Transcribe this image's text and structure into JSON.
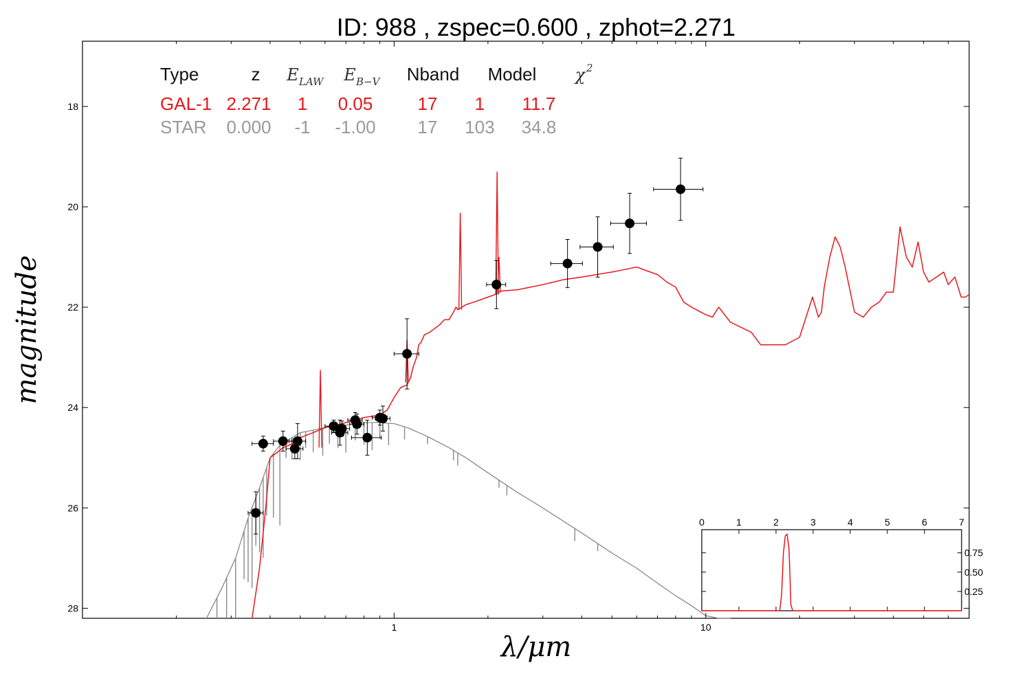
{
  "chart_data": {
    "type": "line",
    "title": "ID:  988   , zspec=0.600 , zphot=2.271",
    "xlabel": "λ/μm",
    "ylabel": "magnitude",
    "xscale": "log",
    "xlim": [
      0.1,
      70
    ],
    "ylim": [
      28.2,
      16.7
    ],
    "yaxis_inverted": true,
    "x_ticks": [
      1,
      10
    ],
    "x_tick_labels": [
      "1",
      "10"
    ],
    "y_ticks": [
      18,
      20,
      22,
      24,
      26,
      28
    ],
    "y_tick_labels": [
      "18",
      "20",
      "22",
      "24",
      "26",
      "28"
    ],
    "grid": false,
    "colors": {
      "galaxy": "#e8161b",
      "star": "#888888",
      "points": "#000000"
    },
    "fit_table": {
      "headers": [
        "Type",
        "z",
        "E",
        "E",
        "Nband",
        "Model",
        "χ"
      ],
      "header_subscripts": [
        "",
        "",
        "LAW",
        "B−V",
        "",
        "",
        ""
      ],
      "header_superscripts": [
        "",
        "",
        "",
        "",
        "",
        "",
        "2"
      ],
      "rows": [
        {
          "name": "GAL-1",
          "values": [
            "GAL-1",
            "2.271",
            "1",
            "0.05",
            "17",
            "1",
            "11.7"
          ],
          "color": "#e8161b"
        },
        {
          "name": "STAR",
          "values": [
            "STAR",
            "0.000",
            "-1",
            "-1.00",
            "17",
            "103",
            "34.8"
          ],
          "color": "#999999"
        }
      ]
    },
    "series": [
      {
        "name": "GAL-1",
        "kind": "line",
        "color": "#e8161b",
        "x": [
          0.35,
          0.37,
          0.38,
          0.39,
          0.4,
          0.42,
          0.44,
          0.46,
          0.48,
          0.5,
          0.55,
          0.6,
          0.65,
          0.7,
          0.75,
          0.8,
          0.9,
          0.95,
          1.0,
          1.05,
          1.1,
          1.13,
          1.15,
          1.18,
          1.2,
          1.22,
          1.25,
          1.3,
          1.4,
          1.45,
          1.5,
          1.55,
          1.58,
          1.6,
          1.65,
          1.7,
          1.8,
          2.0,
          2.1,
          2.15,
          2.17,
          2.2,
          2.5,
          3.0,
          3.5,
          4.0,
          5.0,
          5.5,
          6.0,
          6.5,
          7.0,
          7.5,
          8.0,
          8.5,
          9.0,
          10.0,
          10.5,
          11.0,
          12.0,
          14.0,
          15.0,
          18.0,
          20.0,
          22.0,
          23.0,
          23.5,
          24.0,
          25.0,
          26.0,
          27.0,
          28.0,
          30.0,
          32.0,
          34.0,
          36.0,
          38.0,
          40.0,
          42.0,
          44.0,
          46.0,
          48.0,
          50.0,
          52.0,
          55.0,
          58.0,
          60.0,
          63.0,
          66.0,
          68.0,
          70.0
        ],
        "y": [
          28.2,
          27.2,
          26.5,
          25.8,
          25.0,
          24.9,
          24.8,
          24.75,
          24.7,
          24.6,
          24.5,
          24.4,
          24.35,
          24.3,
          24.25,
          24.2,
          24.15,
          24.05,
          23.8,
          23.6,
          23.55,
          23.4,
          23.2,
          23.0,
          22.75,
          22.7,
          22.55,
          22.5,
          22.35,
          22.25,
          22.25,
          22.1,
          22.0,
          22.05,
          22.0,
          21.95,
          21.9,
          21.8,
          21.75,
          21.72,
          21.7,
          21.68,
          21.65,
          21.55,
          21.45,
          21.4,
          21.3,
          21.25,
          21.2,
          21.28,
          21.35,
          21.5,
          21.6,
          21.9,
          22.0,
          22.15,
          22.2,
          22.0,
          22.3,
          22.5,
          22.75,
          22.75,
          22.6,
          21.8,
          22.2,
          22.1,
          21.6,
          21.0,
          20.6,
          20.8,
          21.2,
          22.1,
          22.2,
          22.0,
          21.9,
          21.7,
          21.7,
          20.4,
          21.0,
          21.2,
          20.7,
          21.3,
          21.5,
          21.4,
          21.3,
          21.55,
          21.4,
          21.8,
          21.8,
          21.75
        ],
        "spikes": [
          {
            "x": 0.58,
            "base": 24.8,
            "peak": 23.25
          },
          {
            "x": 1.1,
            "base": 23.5,
            "peak": 22.65
          },
          {
            "x": 1.63,
            "base": 22.05,
            "peak": 20.12
          },
          {
            "x": 2.14,
            "base": 21.75,
            "peak": 19.3
          },
          {
            "x": 2.17,
            "base": 21.7,
            "peak": 21.0
          }
        ]
      },
      {
        "name": "STAR",
        "kind": "line",
        "color": "#888888",
        "x": [
          0.25,
          0.28,
          0.31,
          0.34,
          0.37,
          0.4,
          0.43,
          0.47,
          0.5,
          0.55,
          0.6,
          0.7,
          0.8,
          0.9,
          1.0,
          1.1,
          1.2,
          1.3,
          1.5,
          1.7,
          2.0,
          2.5,
          3.0,
          4.0,
          5.0,
          6.0,
          7.0,
          8.0,
          9.0,
          10.0,
          11.0,
          12.0
        ],
        "y": [
          28.2,
          27.6,
          27.0,
          26.2,
          25.6,
          25.0,
          24.75,
          24.6,
          24.5,
          24.45,
          24.4,
          24.35,
          24.3,
          24.3,
          24.32,
          24.4,
          24.5,
          24.6,
          24.8,
          25.0,
          25.3,
          25.7,
          26.0,
          26.5,
          26.9,
          27.2,
          27.5,
          27.75,
          27.95,
          28.15,
          28.3,
          28.4
        ],
        "absorption_lines": [
          0.27,
          0.29,
          0.31,
          0.33,
          0.34,
          0.35,
          0.36,
          0.37,
          0.38,
          0.39,
          0.41,
          0.43,
          0.45,
          0.47,
          0.5,
          0.52,
          0.55,
          0.59,
          0.62,
          0.66,
          0.7,
          0.75,
          0.8,
          0.85,
          0.9,
          0.96,
          1.08,
          1.28,
          1.55,
          1.6,
          2.17,
          2.3,
          3.8,
          4.5
        ]
      },
      {
        "name": "observed",
        "kind": "points",
        "color": "#000000",
        "x": [
          0.36,
          0.38,
          0.44,
          0.48,
          0.49,
          0.64,
          0.67,
          0.68,
          0.75,
          0.76,
          0.82,
          0.9,
          0.92,
          1.1,
          2.13,
          3.6,
          4.5,
          5.7,
          8.3
        ],
        "y": [
          26.1,
          24.72,
          24.67,
          24.82,
          24.67,
          24.37,
          24.5,
          24.42,
          24.25,
          24.33,
          24.6,
          24.2,
          24.22,
          22.93,
          21.55,
          21.13,
          20.8,
          20.33,
          19.65
        ],
        "x_err": [
          0.02,
          0.03,
          0.03,
          0.03,
          0.03,
          0.04,
          0.04,
          0.04,
          0.04,
          0.04,
          0.09,
          0.05,
          0.05,
          0.1,
          0.15,
          0.42,
          0.55,
          0.75,
          1.5
        ],
        "y_err": [
          0.42,
          0.15,
          0.2,
          0.2,
          0.35,
          0.12,
          0.25,
          0.15,
          0.15,
          0.2,
          0.35,
          0.15,
          0.25,
          0.7,
          0.48,
          0.48,
          0.6,
          0.6,
          0.62
        ]
      }
    ],
    "inset": {
      "type": "line",
      "xlim": [
        0,
        7
      ],
      "ylim": [
        0,
        1.05
      ],
      "x_ticks": [
        0,
        1,
        2,
        3,
        4,
        5,
        6,
        7
      ],
      "x_tick_labels": [
        "0",
        "1",
        "2",
        "3",
        "4",
        "5",
        "6",
        "7"
      ],
      "y_ticks": [
        0.25,
        0.5,
        0.75
      ],
      "y_tick_labels": [
        "0.25",
        "0.50",
        "0.75"
      ],
      "color": "#e8161b",
      "x": [
        0,
        2.0,
        2.1,
        2.15,
        2.2,
        2.25,
        2.3,
        2.35,
        2.38,
        2.4,
        2.45,
        2.5,
        7
      ],
      "y": [
        0.0,
        0.0,
        0.0,
        0.2,
        0.75,
        0.97,
        0.99,
        0.8,
        0.4,
        0.08,
        0.0,
        0.0,
        0.0
      ]
    }
  }
}
